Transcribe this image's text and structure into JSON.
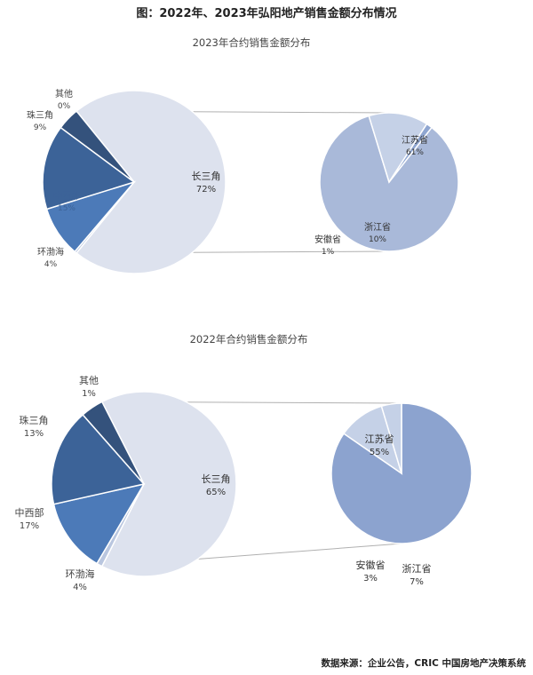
{
  "title": "图：2022年、2023年弘阳地产销售金额分布情况",
  "source": "数据来源：企业公告，CRIC 中国房地产决策系统",
  "colors": {
    "changsanjiao": "#dde2ee",
    "zhusanjiao": "#4c7ab8",
    "zhongxibu": "#3c6398",
    "huanbohai": "#34527c",
    "qita": "#b9c6df",
    "sub2023": "#a9b9d9",
    "sub2022": "#8ca3cf",
    "subSmall": "#c5d1e7",
    "subTiny": "#8fa6d1",
    "connector": "#b0b0b0"
  },
  "chart_data": [
    {
      "type": "pie",
      "title": "2023年合约销售金额分布",
      "slices": [
        {
          "name": "长三角",
          "label": "72%",
          "value": 72
        },
        {
          "name": "其他",
          "label": "0%",
          "value": 0.4
        },
        {
          "name": "珠三角",
          "label": "9%",
          "value": 9
        },
        {
          "name": "中西部",
          "label": "15%",
          "value": 15
        },
        {
          "name": "环渤海",
          "label": "4%",
          "value": 4
        }
      ],
      "sub_pie": {
        "parent": "长三角",
        "slices": [
          {
            "name": "江苏省",
            "label": "61%",
            "value": 61
          },
          {
            "name": "浙江省",
            "label": "10%",
            "value": 10
          },
          {
            "name": "安徽省",
            "label": "1%",
            "value": 1
          }
        ]
      }
    },
    {
      "type": "pie",
      "title": "2022年合约销售金额分布",
      "slices": [
        {
          "name": "长三角",
          "label": "65%",
          "value": 65
        },
        {
          "name": "其他",
          "label": "1%",
          "value": 1
        },
        {
          "name": "珠三角",
          "label": "13%",
          "value": 13
        },
        {
          "name": "中西部",
          "label": "17%",
          "value": 17
        },
        {
          "name": "环渤海",
          "label": "4%",
          "value": 4
        }
      ],
      "sub_pie": {
        "parent": "长三角",
        "slices": [
          {
            "name": "江苏省",
            "label": "55%",
            "value": 55
          },
          {
            "name": "浙江省",
            "label": "7%",
            "value": 7
          },
          {
            "name": "安徽省",
            "label": "3%",
            "value": 3
          }
        ]
      }
    }
  ]
}
